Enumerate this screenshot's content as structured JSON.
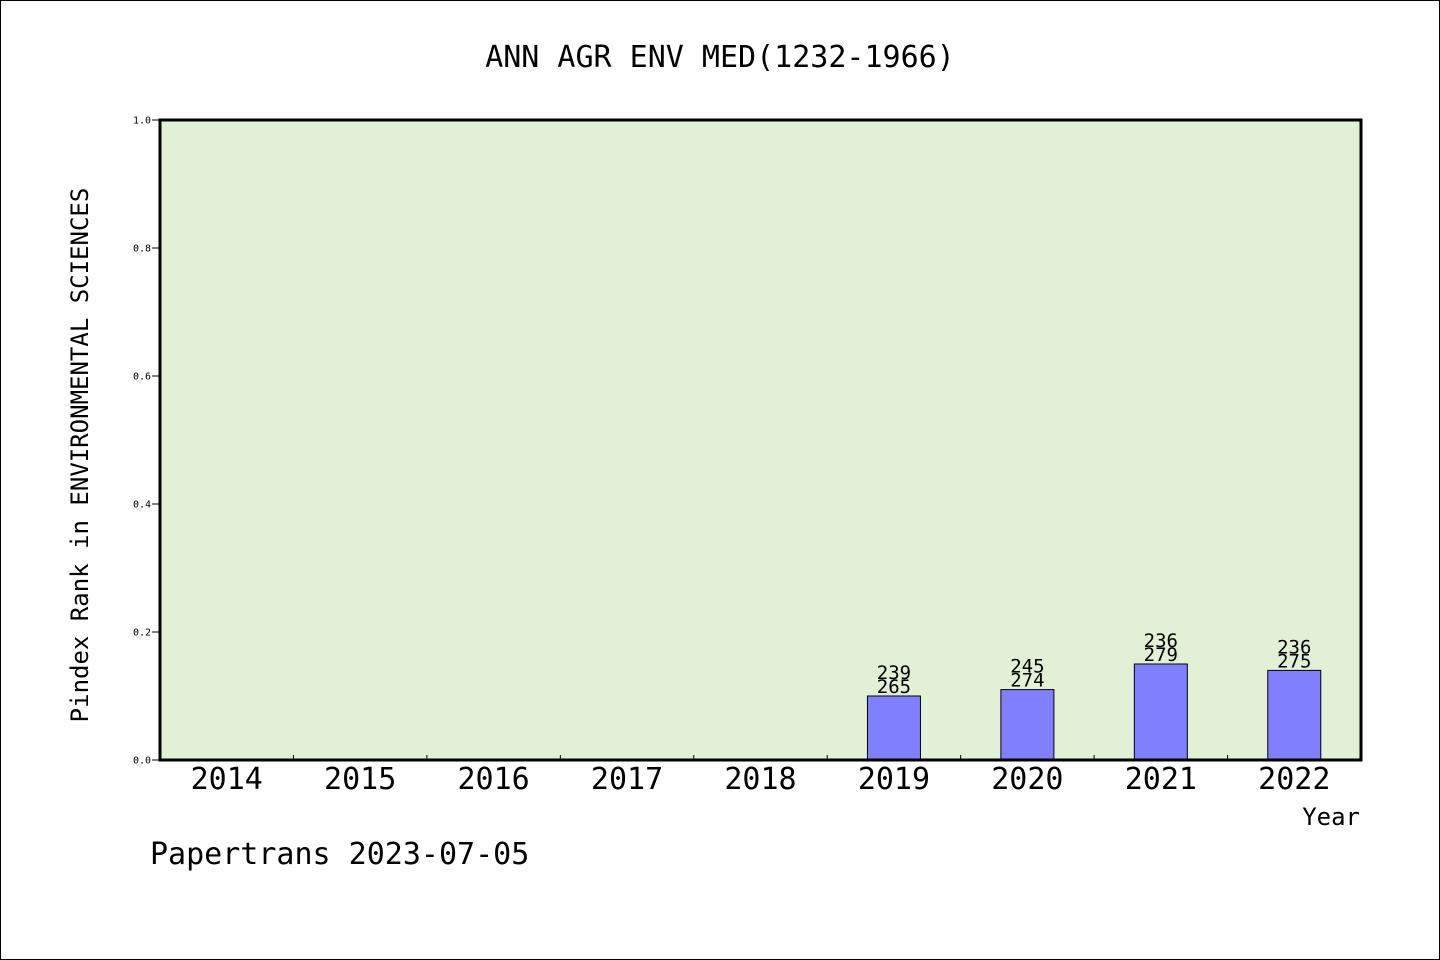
{
  "chart_data": {
    "type": "bar",
    "title": "ANN AGR ENV MED(1232-1966)",
    "xlabel": "Year",
    "ylabel": "Pindex Rank in ENVIRONMENTAL SCIENCES",
    "footer": "Papertrans 2023-07-05",
    "ylim": [
      0,
      1.0
    ],
    "yticks": [
      "0.0",
      "0.2",
      "0.4",
      "0.6",
      "0.8",
      "1.0"
    ],
    "categories": [
      "2014",
      "2015",
      "2016",
      "2017",
      "2018",
      "2019",
      "2020",
      "2021",
      "2022"
    ],
    "values": [
      null,
      null,
      null,
      null,
      null,
      0.1,
      0.11,
      0.15,
      0.14
    ],
    "labels_top": [
      null,
      null,
      null,
      null,
      null,
      "239",
      "245",
      "236",
      "236"
    ],
    "labels_bottom": [
      null,
      null,
      null,
      null,
      null,
      "265",
      "274",
      "279",
      "275"
    ],
    "grid": false,
    "colors": {
      "plot_background": "#e2f0d6",
      "bar": "#8080ff",
      "axis": "#000000"
    }
  }
}
